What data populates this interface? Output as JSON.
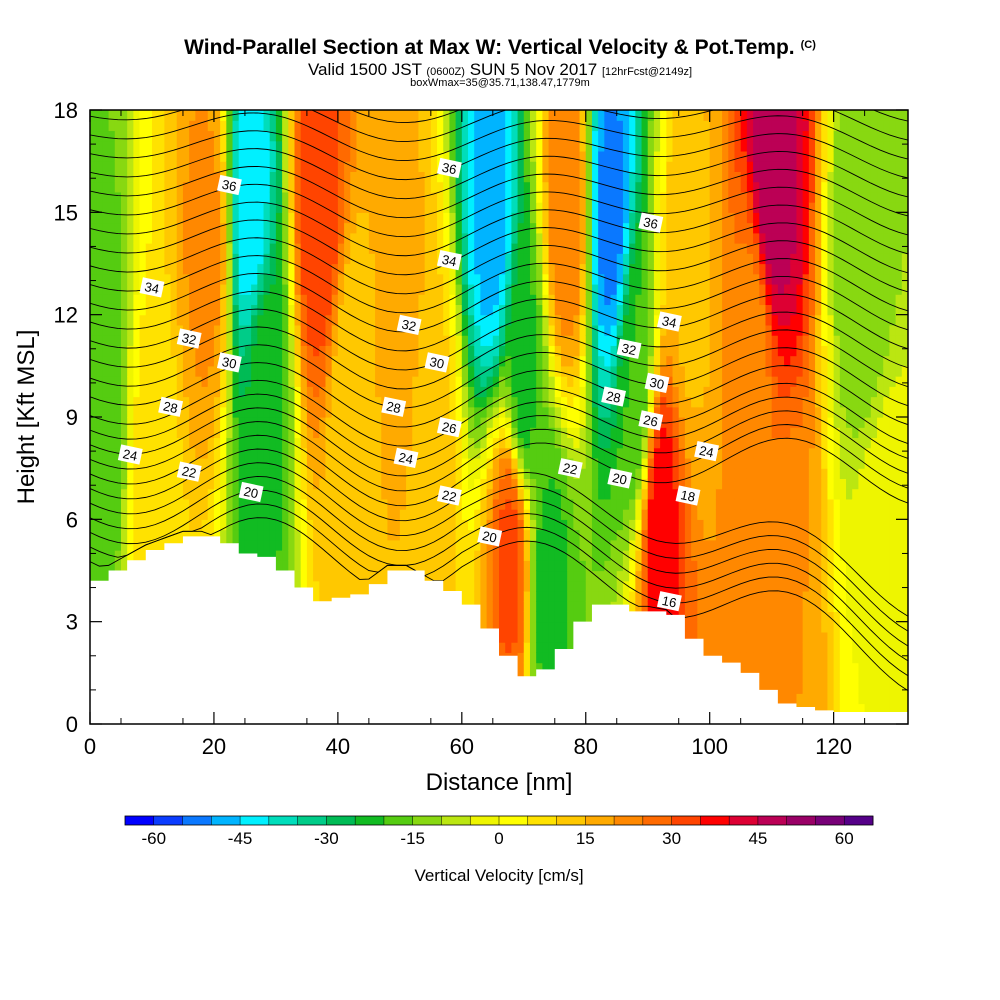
{
  "title": "Wind-Parallel Section at Max W: Vertical Velocity & Pot.Temp.",
  "title_mark": "(C)",
  "subtitle_main_a": "Valid 1500 JST",
  "subtitle_small_a": "(0600Z)",
  "subtitle_main_b": "SUN 5 Nov 2017",
  "subtitle_small_b": "[12hrFcst@2149z]",
  "subtitle2": "boxWmax=35@35.71,138.47,1779m",
  "chart_data": {
    "type": "heatmap",
    "xlabel": "Distance [nm]",
    "ylabel": "Height [Kft MSL]",
    "xlim": [
      0,
      132
    ],
    "ylim": [
      0,
      18
    ],
    "x_ticks": [
      0,
      20,
      40,
      60,
      80,
      100,
      120
    ],
    "y_ticks": [
      0,
      3,
      6,
      9,
      12,
      15,
      18
    ],
    "colorbar": {
      "label": "Vertical Velocity [cm/s]",
      "ticks": [
        -60,
        -45,
        -30,
        -15,
        0,
        15,
        30,
        45,
        60
      ],
      "range": [
        -65,
        65
      ],
      "step": 5,
      "colors": [
        "#0000ff",
        "#0a3cff",
        "#0a78ff",
        "#00b4ff",
        "#00f0ff",
        "#00ddbb",
        "#00cc88",
        "#00bb55",
        "#11bb22",
        "#55cc11",
        "#88d811",
        "#bbe611",
        "#eef500",
        "#ffff00",
        "#ffe200",
        "#ffc800",
        "#ffaa00",
        "#ff8800",
        "#ff6a00",
        "#ff4400",
        "#ff0000",
        "#dd0033",
        "#bb0055",
        "#990066",
        "#770077",
        "#550088"
      ]
    },
    "velocity_centers": [
      {
        "x": 2,
        "y": 9,
        "w": -20
      },
      {
        "x": 10,
        "y": 7,
        "w": 8
      },
      {
        "x": 19,
        "y": 14,
        "w": 22
      },
      {
        "x": 26,
        "y": 15,
        "w": -44
      },
      {
        "x": 28,
        "y": 10,
        "w": -22
      },
      {
        "x": 37,
        "y": 15,
        "w": 34
      },
      {
        "x": 42,
        "y": 9,
        "w": 10
      },
      {
        "x": 50,
        "y": 12,
        "w": 18
      },
      {
        "x": 55,
        "y": 8,
        "w": 12
      },
      {
        "x": 65,
        "y": 15,
        "w": -48
      },
      {
        "x": 70,
        "y": 10,
        "w": -22
      },
      {
        "x": 77,
        "y": 15,
        "w": 25
      },
      {
        "x": 68,
        "y": 5,
        "w": 32
      },
      {
        "x": 74,
        "y": 4,
        "w": -22
      },
      {
        "x": 84,
        "y": 15,
        "w": -52
      },
      {
        "x": 88,
        "y": 10,
        "w": -20
      },
      {
        "x": 92,
        "y": 6,
        "w": 38
      },
      {
        "x": 97,
        "y": 13,
        "w": 14
      },
      {
        "x": 110,
        "y": 16,
        "w": 50
      },
      {
        "x": 107,
        "y": 11,
        "w": 22
      },
      {
        "x": 112,
        "y": 2.5,
        "w": 20
      },
      {
        "x": 125,
        "y": 14,
        "w": -15
      },
      {
        "x": 128,
        "y": 4,
        "w": 0
      }
    ],
    "terrain": [
      {
        "x": 0,
        "top": 4.2
      },
      {
        "x": 3,
        "top": 4.5
      },
      {
        "x": 6,
        "top": 4.8
      },
      {
        "x": 9,
        "top": 5.1
      },
      {
        "x": 12,
        "top": 5.3
      },
      {
        "x": 15,
        "top": 5.5
      },
      {
        "x": 18,
        "top": 5.5
      },
      {
        "x": 21,
        "top": 5.3
      },
      {
        "x": 24,
        "top": 5.0
      },
      {
        "x": 27,
        "top": 4.9
      },
      {
        "x": 30,
        "top": 4.5
      },
      {
        "x": 33,
        "top": 4.0
      },
      {
        "x": 36,
        "top": 3.6
      },
      {
        "x": 39,
        "top": 3.7
      },
      {
        "x": 42,
        "top": 3.8
      },
      {
        "x": 45,
        "top": 4.1
      },
      {
        "x": 48,
        "top": 4.5
      },
      {
        "x": 51,
        "top": 4.5
      },
      {
        "x": 54,
        "top": 4.2
      },
      {
        "x": 57,
        "top": 3.9
      },
      {
        "x": 60,
        "top": 3.5
      },
      {
        "x": 63,
        "top": 2.8
      },
      {
        "x": 66,
        "top": 2.0
      },
      {
        "x": 69,
        "top": 1.4
      },
      {
        "x": 72,
        "top": 1.6
      },
      {
        "x": 75,
        "top": 2.2
      },
      {
        "x": 78,
        "top": 3.0
      },
      {
        "x": 81,
        "top": 3.5
      },
      {
        "x": 84,
        "top": 3.5
      },
      {
        "x": 87,
        "top": 3.3
      },
      {
        "x": 90,
        "top": 3.3
      },
      {
        "x": 93,
        "top": 3.2
      },
      {
        "x": 96,
        "top": 2.5
      },
      {
        "x": 99,
        "top": 2.0
      },
      {
        "x": 102,
        "top": 1.8
      },
      {
        "x": 105,
        "top": 1.5
      },
      {
        "x": 108,
        "top": 1.0
      },
      {
        "x": 111,
        "top": 0.6
      },
      {
        "x": 114,
        "top": 0.5
      },
      {
        "x": 117,
        "top": 0.4
      },
      {
        "x": 120,
        "top": 0.35
      },
      {
        "x": 123,
        "top": 0.35
      },
      {
        "x": 126,
        "top": 0.35
      },
      {
        "x": 129,
        "top": 0.35
      },
      {
        "x": 132,
        "top": 0.35
      }
    ],
    "theta_contours": {
      "levels": [
        16,
        18,
        20,
        22,
        24,
        26,
        28,
        30,
        32,
        34,
        36
      ],
      "labels": [
        {
          "text": "36",
          "x": 22.5,
          "y": 15.8
        },
        {
          "text": "36",
          "x": 58,
          "y": 16.3
        },
        {
          "text": "36",
          "x": 90.5,
          "y": 14.7
        },
        {
          "text": "34",
          "x": 10,
          "y": 12.8
        },
        {
          "text": "34",
          "x": 58,
          "y": 13.6
        },
        {
          "text": "34",
          "x": 93.5,
          "y": 11.8
        },
        {
          "text": "32",
          "x": 16,
          "y": 11.3
        },
        {
          "text": "32",
          "x": 51.5,
          "y": 11.7
        },
        {
          "text": "32",
          "x": 87,
          "y": 11.0
        },
        {
          "text": "30",
          "x": 22.5,
          "y": 10.6
        },
        {
          "text": "30",
          "x": 56,
          "y": 10.6
        },
        {
          "text": "30",
          "x": 91.5,
          "y": 10.0
        },
        {
          "text": "28",
          "x": 13,
          "y": 9.3
        },
        {
          "text": "28",
          "x": 49,
          "y": 9.3
        },
        {
          "text": "28",
          "x": 84.5,
          "y": 9.6
        },
        {
          "text": "26",
          "x": 58,
          "y": 8.7
        },
        {
          "text": "26",
          "x": 90.5,
          "y": 8.9
        },
        {
          "text": "24",
          "x": 6.5,
          "y": 7.9
        },
        {
          "text": "24",
          "x": 51,
          "y": 7.8
        },
        {
          "text": "24",
          "x": 99.5,
          "y": 8.0
        },
        {
          "text": "22",
          "x": 16,
          "y": 7.4
        },
        {
          "text": "22",
          "x": 58,
          "y": 6.7
        },
        {
          "text": "22",
          "x": 77.5,
          "y": 7.5
        },
        {
          "text": "20",
          "x": 26,
          "y": 6.8
        },
        {
          "text": "20",
          "x": 64.5,
          "y": 5.5
        },
        {
          "text": "20",
          "x": 85.5,
          "y": 7.2
        },
        {
          "text": "18",
          "x": 96.5,
          "y": 6.7
        },
        {
          "text": "16",
          "x": 93.5,
          "y": 3.6
        }
      ]
    }
  }
}
